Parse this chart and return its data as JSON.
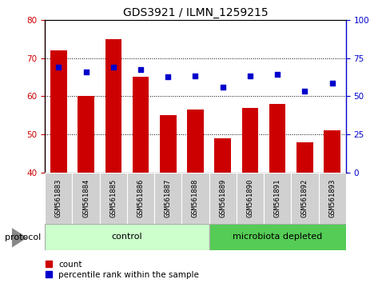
{
  "title": "GDS3921 / ILMN_1259215",
  "samples": [
    "GSM561883",
    "GSM561884",
    "GSM561885",
    "GSM561886",
    "GSM561887",
    "GSM561888",
    "GSM561889",
    "GSM561890",
    "GSM561891",
    "GSM561892",
    "GSM561893"
  ],
  "counts": [
    72,
    60,
    75,
    65,
    55,
    56.5,
    49,
    57,
    58,
    48,
    51
  ],
  "percentile_ranks": [
    69,
    66,
    69,
    67.5,
    62.5,
    63.5,
    56,
    63.5,
    64.5,
    53.5,
    58.5
  ],
  "ylim_left": [
    40,
    80
  ],
  "ylim_right": [
    0,
    100
  ],
  "left_ticks": [
    40,
    50,
    60,
    70,
    80
  ],
  "right_ticks": [
    0,
    25,
    50,
    75,
    100
  ],
  "bar_color": "#cc0000",
  "dot_color": "#0000cc",
  "bar_width": 0.6,
  "n_control": 6,
  "n_micro": 5,
  "control_color": "#ccffcc",
  "microbiota_color": "#55cc55",
  "protocol_label": "protocol",
  "control_label": "control",
  "microbiota_label": "microbiota depleted",
  "legend_count_label": "count",
  "legend_pct_label": "percentile rank within the sample",
  "xlabel_fontsize": 6.5,
  "title_fontsize": 10,
  "tick_fontsize": 7.5,
  "xtick_bg": "#d0d0d0"
}
